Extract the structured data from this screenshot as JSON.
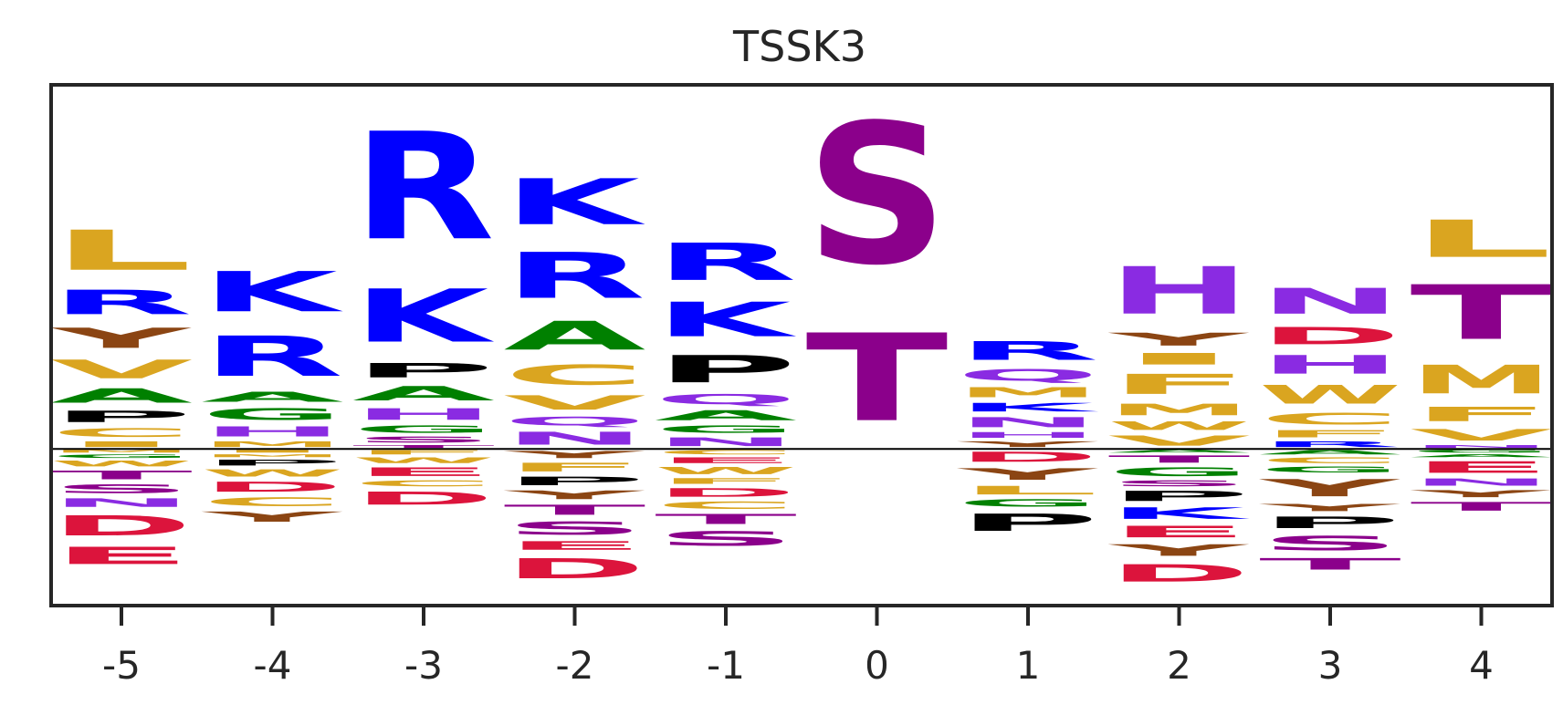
{
  "chart_data": {
    "type": "sequence-logo",
    "title": "TSSK3",
    "xlabel": "",
    "ylabel": "",
    "positions": [
      -5,
      -4,
      -3,
      -2,
      -1,
      0,
      1,
      2,
      3,
      4
    ],
    "ylim": [
      -0.34,
      0.79
    ],
    "baseline": 0,
    "grid": false,
    "legend": "none",
    "colors": {
      "A": "#008000",
      "C": "#DAA520",
      "D": "#DC143C",
      "E": "#DC143C",
      "F": "#DAA520",
      "G": "#008000",
      "H": "#8A2BE2",
      "I": "#DAA520",
      "K": "#0000FF",
      "L": "#DAA520",
      "M": "#DAA520",
      "N": "#8A2BE2",
      "P": "#000000",
      "Q": "#8A2BE2",
      "R": "#0000FF",
      "S": "#8B008B",
      "T": "#8B008B",
      "V": "#DAA520",
      "W": "#DAA520",
      "Y": "#8B4513"
    },
    "stacks": [
      {
        "pos": -5,
        "up": [
          [
            "I",
            0.02
          ],
          [
            "C",
            0.03
          ],
          [
            "P",
            0.04
          ],
          [
            "A",
            0.05
          ],
          [
            "V",
            0.065
          ],
          [
            "Y",
            0.07
          ],
          [
            "R",
            0.085
          ],
          [
            "L",
            0.14
          ]
        ],
        "down": [
          [
            "M",
            0.01
          ],
          [
            "G",
            0.012
          ],
          [
            "W",
            0.02
          ],
          [
            "T",
            0.03
          ],
          [
            "S",
            0.03
          ],
          [
            "N",
            0.03
          ],
          [
            "D",
            0.07
          ],
          [
            "E",
            0.06
          ]
        ]
      },
      {
        "pos": -4,
        "up": [
          [
            "M",
            0.02
          ],
          [
            "H",
            0.035
          ],
          [
            "G",
            0.04
          ],
          [
            "A",
            0.035
          ],
          [
            "R",
            0.14
          ],
          [
            "K",
            0.14
          ]
        ],
        "down": [
          [
            "I",
            0.01
          ],
          [
            "M",
            0.01
          ],
          [
            "P",
            0.02
          ],
          [
            "W",
            0.025
          ],
          [
            "D",
            0.035
          ],
          [
            "C",
            0.03
          ],
          [
            "Y",
            0.035
          ]
        ]
      },
      {
        "pos": -3,
        "up": [
          [
            "T",
            0.01
          ],
          [
            "S",
            0.02
          ],
          [
            "G",
            0.025
          ],
          [
            "H",
            0.04
          ],
          [
            "A",
            0.05
          ],
          [
            "P",
            0.05
          ],
          [
            "K",
            0.185
          ],
          [
            "R",
            0.375
          ]
        ],
        "down": [
          [
            "F",
            0.015
          ],
          [
            "W",
            0.02
          ],
          [
            "E",
            0.03
          ],
          [
            "C",
            0.02
          ],
          [
            "D",
            0.045
          ]
        ]
      },
      {
        "pos": -2,
        "up": [
          [
            "N",
            0.045
          ],
          [
            "Q",
            0.03
          ],
          [
            "V",
            0.05
          ],
          [
            "C",
            0.07
          ],
          [
            "A",
            0.1
          ],
          [
            "R",
            0.16
          ],
          [
            "K",
            0.16
          ]
        ],
        "down": [
          [
            "Y",
            0.025
          ],
          [
            "F",
            0.03
          ],
          [
            "P",
            0.03
          ],
          [
            "Y",
            0.03
          ],
          [
            "T",
            0.035
          ],
          [
            "S",
            0.045
          ],
          [
            "E",
            0.03
          ],
          [
            "D",
            0.07
          ]
        ]
      },
      {
        "pos": -1,
        "up": [
          [
            "N",
            0.03
          ],
          [
            "G",
            0.025
          ],
          [
            "A",
            0.035
          ],
          [
            "Q",
            0.035
          ],
          [
            "P",
            0.095
          ],
          [
            "K",
            0.12
          ],
          [
            "R",
            0.13
          ]
        ],
        "down": [
          [
            "C",
            0.015
          ],
          [
            "E",
            0.02
          ],
          [
            "W",
            0.025
          ],
          [
            "F",
            0.02
          ],
          [
            "D",
            0.03
          ],
          [
            "C",
            0.025
          ],
          [
            "T",
            0.035
          ],
          [
            "S",
            0.05
          ]
        ]
      },
      {
        "pos": 0,
        "up": [
          [
            "T",
            0.305
          ],
          [
            "S",
            0.49
          ]
        ],
        "down": []
      },
      {
        "pos": 1,
        "up": [
          [
            "Y",
            0.02
          ],
          [
            "H",
            0.02
          ],
          [
            "N",
            0.035
          ],
          [
            "K",
            0.03
          ],
          [
            "M",
            0.035
          ],
          [
            "Q",
            0.04
          ],
          [
            "R",
            0.065
          ]
        ],
        "down": [
          [
            "D",
            0.035
          ],
          [
            "Y",
            0.04
          ],
          [
            "L",
            0.03
          ],
          [
            "G",
            0.025
          ],
          [
            "P",
            0.06
          ]
        ]
      },
      {
        "pos": 2,
        "up": [
          [
            "V",
            0.035
          ],
          [
            "W",
            0.03
          ],
          [
            "M",
            0.04
          ],
          [
            "F",
            0.07
          ],
          [
            "I",
            0.04
          ],
          [
            "Y",
            0.045
          ],
          [
            "H",
            0.165
          ]
        ],
        "down": [
          [
            "A",
            0.01
          ],
          [
            "T",
            0.025
          ],
          [
            "G",
            0.03
          ],
          [
            "S",
            0.02
          ],
          [
            "P",
            0.035
          ],
          [
            "K",
            0.04
          ],
          [
            "E",
            0.04
          ],
          [
            "Y",
            0.04
          ],
          [
            "D",
            0.06
          ]
        ]
      },
      {
        "pos": 3,
        "up": [
          [
            "R",
            0.02
          ],
          [
            "F",
            0.025
          ],
          [
            "C",
            0.04
          ],
          [
            "W",
            0.065
          ],
          [
            "H",
            0.065
          ],
          [
            "D",
            0.06
          ],
          [
            "N",
            0.09
          ]
        ],
        "down": [
          [
            "A",
            0.015
          ],
          [
            "C",
            0.02
          ],
          [
            "G",
            0.02
          ],
          [
            "Y",
            0.06
          ],
          [
            "Y",
            0.025
          ],
          [
            "P",
            0.04
          ],
          [
            "S",
            0.05
          ],
          [
            "T",
            0.04
          ]
        ]
      },
      {
        "pos": 4,
        "up": [
          [
            "N",
            0.01
          ],
          [
            "V",
            0.04
          ],
          [
            "F",
            0.05
          ],
          [
            "M",
            0.1
          ],
          [
            "T",
            0.19
          ],
          [
            "L",
            0.13
          ]
        ],
        "down": [
          [
            "G",
            0.01
          ],
          [
            "A",
            0.01
          ],
          [
            "E",
            0.04
          ],
          [
            "N",
            0.025
          ],
          [
            "Y",
            0.025
          ],
          [
            "T",
            0.03
          ]
        ]
      }
    ]
  }
}
